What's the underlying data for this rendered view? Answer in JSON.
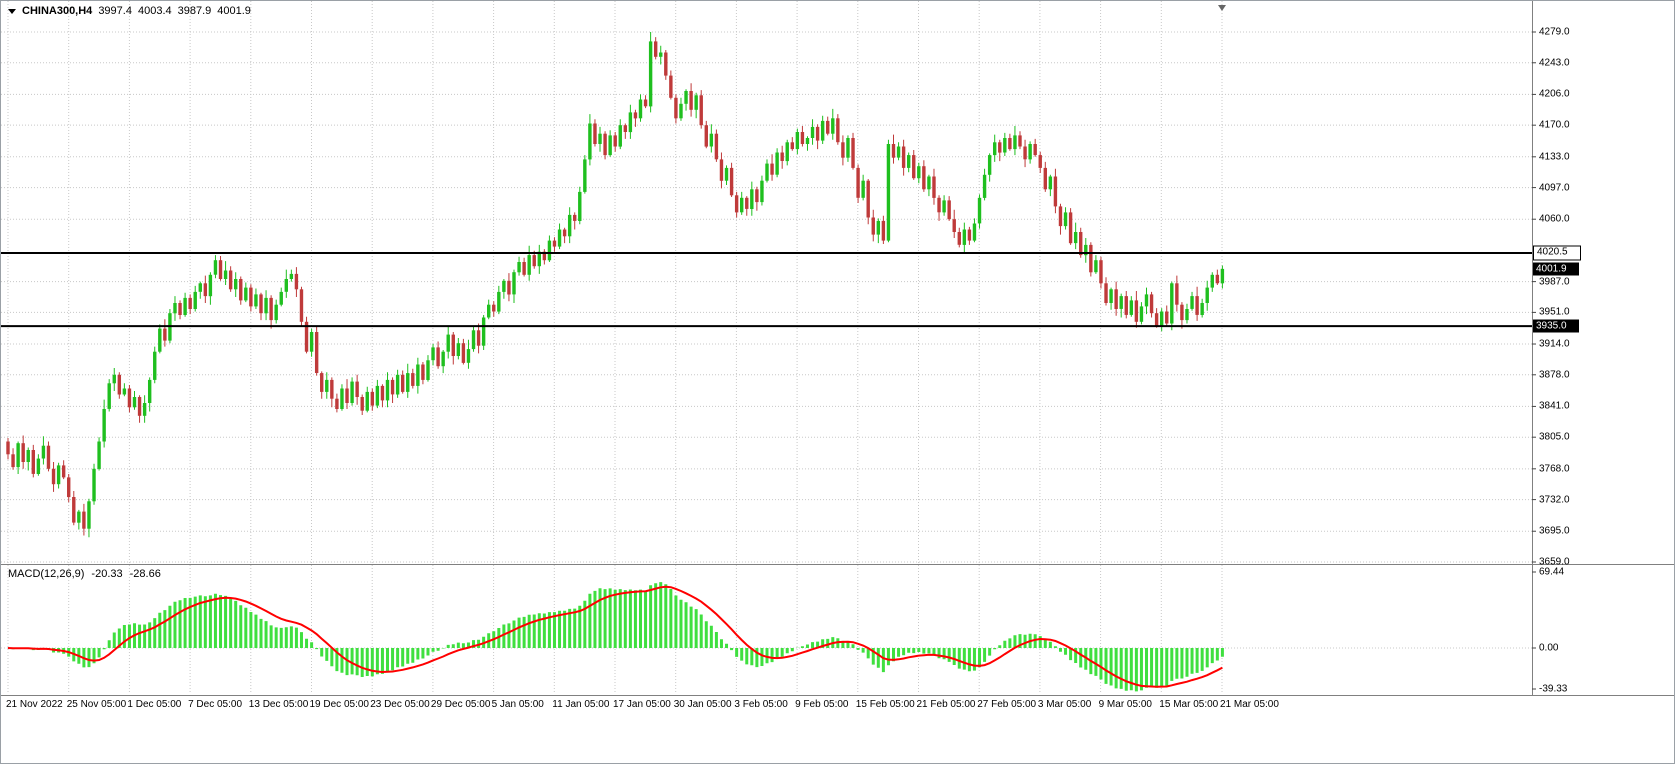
{
  "header": {
    "symbol": "CHINA300,H4",
    "open": "3997.4",
    "high": "4003.4",
    "low": "3987.9",
    "close": "4001.9"
  },
  "price_axis": {
    "labels": [
      "4279.0",
      "4243.0",
      "4206.0",
      "4170.0",
      "4133.0",
      "4097.0",
      "4060.0",
      "3987.0",
      "3951.0",
      "3914.0",
      "3878.0",
      "3841.0",
      "3805.0",
      "3768.0",
      "3732.0",
      "3695.0",
      "3659.0"
    ],
    "line_labels": [
      {
        "text": "4020.5",
        "value": 4020.5,
        "style": "outline"
      },
      {
        "text": "3935.0",
        "value": 3935.0,
        "style": "solid"
      }
    ],
    "current_price": {
      "text": "4001.9",
      "value": 4001.9
    }
  },
  "time_axis": {
    "labels": [
      "21 Nov 2022",
      "25 Nov 05:00",
      "1 Dec 05:00",
      "7 Dec 05:00",
      "13 Dec 05:00",
      "19 Dec 05:00",
      "23 Dec 05:00",
      "29 Dec 05:00",
      "5 Jan 05:00",
      "11 Jan 05:00",
      "17 Jan 05:00",
      "30 Jan 05:00",
      "3 Feb 05:00",
      "9 Feb 05:00",
      "15 Feb 05:00",
      "21 Feb 05:00",
      "27 Feb 05:00",
      "3 Mar 05:00",
      "9 Mar 05:00",
      "15 Mar 05:00",
      "21 Mar 05:00"
    ]
  },
  "macd_panel": {
    "title": "MACD(12,26,9)",
    "macd_value": "-20.33",
    "signal_value": "-28.66",
    "axis_labels": [
      {
        "text": "69.44",
        "value": 69.44
      },
      {
        "text": "0.00",
        "value": 0
      },
      {
        "text": "-39.33",
        "value": -39.33
      }
    ]
  },
  "chart_data": {
    "type": "candlestick",
    "title": "CHINA300,H4",
    "ohlc_display": {
      "open": 3997.4,
      "high": 4003.4,
      "low": 3987.9,
      "close": 4001.9
    },
    "y_axis": {
      "visible_top": 4279.0,
      "visible_bottom": 3659.0,
      "grid_step": 36.5
    },
    "x_tick_labels": [
      "21 Nov 2022",
      "25 Nov 05:00",
      "1 Dec 05:00",
      "7 Dec 05:00",
      "13 Dec 05:00",
      "19 Dec 05:00",
      "23 Dec 05:00",
      "29 Dec 05:00",
      "5 Jan 05:00",
      "11 Jan 05:00",
      "17 Jan 05:00",
      "30 Jan 05:00",
      "3 Feb 05:00",
      "9 Feb 05:00",
      "15 Feb 05:00",
      "21 Feb 05:00",
      "27 Feb 05:00",
      "3 Mar 05:00",
      "9 Mar 05:00",
      "15 Mar 05:00",
      "21 Mar 05:00"
    ],
    "y_tick_labels": [
      "4279.0",
      "4243.0",
      "4206.0",
      "4170.0",
      "4133.0",
      "4097.0",
      "4060.0",
      "3987.0",
      "3951.0",
      "3914.0",
      "3878.0",
      "3841.0",
      "3805.0",
      "3768.0",
      "3732.0",
      "3695.0",
      "3659.0"
    ],
    "horizontal_lines": [
      4020.5,
      3935.0
    ],
    "first_open": 3800,
    "closes": [
      3785,
      3770,
      3798,
      3776,
      3790,
      3762,
      3780,
      3795,
      3768,
      3750,
      3772,
      3758,
      3735,
      3705,
      3718,
      3698,
      3730,
      3768,
      3800,
      3838,
      3868,
      3878,
      3855,
      3862,
      3840,
      3852,
      3830,
      3845,
      3872,
      3905,
      3932,
      3918,
      3950,
      3962,
      3948,
      3968,
      3955,
      3975,
      3985,
      3970,
      3995,
      4012,
      3990,
      4000,
      3978,
      3990,
      3965,
      3980,
      3958,
      3972,
      3950,
      3968,
      3942,
      3960,
      3975,
      3990,
      3996,
      3978,
      3940,
      3905,
      3928,
      3880,
      3858,
      3872,
      3850,
      3838,
      3862,
      3845,
      3870,
      3852,
      3836,
      3858,
      3842,
      3865,
      3848,
      3872,
      3855,
      3878,
      3858,
      3880,
      3865,
      3890,
      3872,
      3895,
      3910,
      3888,
      3905,
      3925,
      3900,
      3915,
      3892,
      3908,
      3930,
      3912,
      3945,
      3960,
      3952,
      3975,
      3988,
      3972,
      3998,
      4010,
      3995,
      4018,
      4005,
      4022,
      4012,
      4035,
      4028,
      4048,
      4040,
      4065,
      4058,
      4092,
      4130,
      4172,
      4148,
      4160,
      4135,
      4158,
      4145,
      4170,
      4162,
      4185,
      4178,
      4200,
      4192,
      4268,
      4250,
      4255,
      4228,
      4202,
      4178,
      4195,
      4210,
      4188,
      4205,
      4170,
      4145,
      4160,
      4130,
      4105,
      4120,
      4088,
      4068,
      4085,
      4072,
      4095,
      4080,
      4105,
      4125,
      4112,
      4138,
      4128,
      4150,
      4142,
      4162,
      4148,
      4155,
      4168,
      4152,
      4175,
      4160,
      4178,
      4150,
      4132,
      4155,
      4120,
      4085,
      4105,
      4062,
      4042,
      4058,
      4035,
      4148,
      4132,
      4145,
      4120,
      4135,
      4108,
      4122,
      4095,
      4110,
      4085,
      4068,
      4082,
      4060,
      4045,
      4030,
      4048,
      4035,
      4055,
      4085,
      4112,
      4135,
      4150,
      4138,
      4155,
      4142,
      4158,
      4145,
      4130,
      4148,
      4135,
      4120,
      4095,
      4110,
      4075,
      4052,
      4068,
      4032,
      4045,
      4018,
      4030,
      3998,
      4012,
      3985,
      3962,
      3978,
      3955,
      3970,
      3948,
      3965,
      3940,
      3958,
      3972,
      3950,
      3935,
      3952,
      3938,
      3985,
      3960,
      3942,
      3955,
      3970,
      3948,
      3962,
      3980,
      3995,
      3985,
      4001.9
    ],
    "wick_high": [
      4,
      7,
      2,
      9,
      3,
      6,
      5,
      11,
      5,
      8,
      3,
      6
    ],
    "wick_low": [
      6,
      3,
      8,
      8,
      10,
      4,
      2,
      7,
      3,
      9,
      5,
      2
    ],
    "indicator": {
      "name": "MACD",
      "fast": 12,
      "slow": 26,
      "signal": 9,
      "current_macd": -20.33,
      "current_signal": -28.66,
      "scale": {
        "max": 69.44,
        "zero": 0,
        "min": -39.33
      }
    }
  },
  "colors": {
    "background": "#ffffff",
    "grid": "#c8c8c8",
    "separator": "#808080",
    "up_candle": "#1fbf1f",
    "down_candle": "#bf3a3a",
    "hline": "#000000",
    "macd_histogram": "#3fdf3f",
    "macd_signal": "#ff0000",
    "text": "#000000",
    "label_box_bg": "#000000",
    "label_box_text": "#ffffff"
  }
}
